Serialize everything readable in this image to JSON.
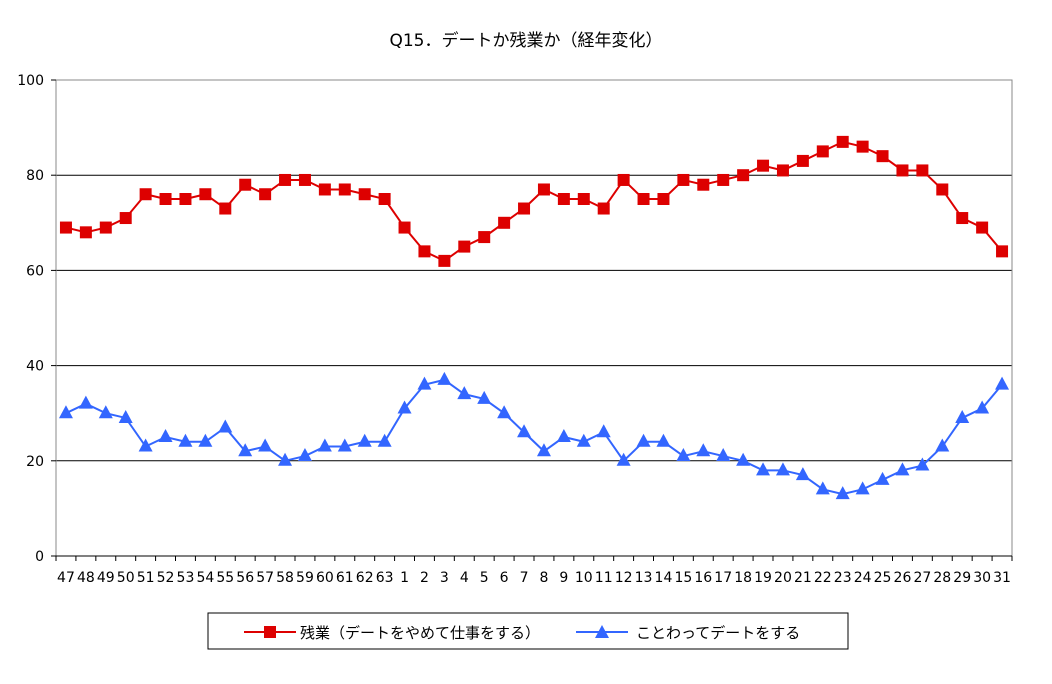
{
  "chart_data": {
    "type": "line",
    "title": "Q15．デートか残業か（経年変化）",
    "xlabel": "",
    "ylabel": "",
    "ylim": [
      0,
      100
    ],
    "yticks": [
      0,
      20,
      40,
      60,
      80,
      100
    ],
    "grid": true,
    "legend_position": "bottom",
    "categories": [
      "47",
      "48",
      "49",
      "50",
      "51",
      "52",
      "53",
      "54",
      "55",
      "56",
      "57",
      "58",
      "59",
      "60",
      "61",
      "62",
      "63",
      "1",
      "2",
      "3",
      "4",
      "5",
      "6",
      "7",
      "8",
      "9",
      "10",
      "11",
      "12",
      "13",
      "14",
      "15",
      "16",
      "17",
      "18",
      "19",
      "20",
      "21",
      "22",
      "23",
      "24",
      "25",
      "26",
      "27",
      "28",
      "29",
      "30",
      "31"
    ],
    "series": [
      {
        "name": "残業（デートをやめて仕事をする）",
        "color": "#dd0000",
        "marker": "square",
        "values": [
          69,
          68,
          69,
          71,
          76,
          75,
          75,
          76,
          73,
          78,
          76,
          79,
          79,
          77,
          77,
          76,
          75,
          69,
          64,
          62,
          65,
          67,
          70,
          73,
          77,
          75,
          75,
          73,
          79,
          75,
          75,
          79,
          78,
          79,
          80,
          82,
          81,
          83,
          85,
          87,
          86,
          84,
          81,
          81,
          77,
          71,
          69,
          64
        ]
      },
      {
        "name": "ことわってデートをする",
        "color": "#3366ff",
        "marker": "triangle",
        "values": [
          30,
          32,
          30,
          29,
          23,
          25,
          24,
          24,
          27,
          22,
          23,
          20,
          21,
          23,
          23,
          24,
          24,
          31,
          36,
          37,
          34,
          33,
          30,
          26,
          22,
          25,
          24,
          26,
          20,
          24,
          24,
          21,
          22,
          21,
          20,
          18,
          18,
          17,
          14,
          13,
          14,
          16,
          18,
          19,
          23,
          29,
          31,
          36
        ]
      }
    ]
  }
}
